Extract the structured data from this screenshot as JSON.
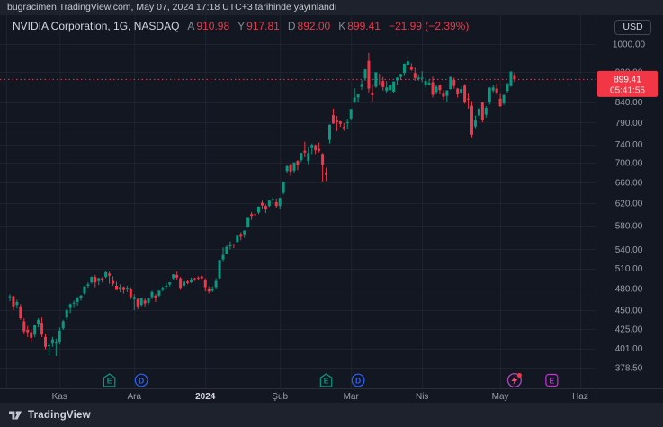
{
  "pubbar": {
    "text": "bugracimen TradingView.com, May 07, 2024 17:18 UTC+3 tarihinde yayınlandı"
  },
  "header": {
    "symbol_title": "NVIDIA Corporation, 1G, NASDAQ",
    "ohlc": {
      "open_label": "A",
      "open": "910.98",
      "high_label": "Y",
      "high": "917.81",
      "low_label": "D",
      "low": "892.00",
      "close_label": "K",
      "close": "899.41",
      "change": "−21.99 (−2.39%)"
    }
  },
  "price_scale": {
    "currency_button": "USD",
    "labels": [
      1000,
      920,
      840,
      790,
      740,
      700,
      660,
      620,
      580,
      540,
      510,
      480,
      450,
      425,
      401,
      378.5
    ],
    "last_price_badge": {
      "price": "899.41",
      "countdown": "05:41:55"
    }
  },
  "time_scale": {
    "ticks": [
      {
        "label": "Kas",
        "i": 14
      },
      {
        "label": "Ara",
        "i": 35
      },
      {
        "label": "2024",
        "i": 55,
        "bold": true
      },
      {
        "label": "Şub",
        "i": 76
      },
      {
        "label": "Mar",
        "i": 96
      },
      {
        "label": "Nis",
        "i": 116
      },
      {
        "label": "May",
        "i": 138
      },
      {
        "label": "Haz",
        "i": 160.5
      }
    ],
    "extra_gridline_i": -1
  },
  "events": [
    {
      "kind": "earnings",
      "label": "E",
      "i": 28,
      "color": "#089981"
    },
    {
      "kind": "dividend",
      "label": "D",
      "i": 37,
      "color": "#2962ff"
    },
    {
      "kind": "earnings",
      "label": "E",
      "i": 89,
      "color": "#089981"
    },
    {
      "kind": "dividend",
      "label": "D",
      "i": 98,
      "color": "#2962ff"
    },
    {
      "kind": "stream",
      "label": "",
      "i": 142,
      "color": "#ab47bc"
    },
    {
      "kind": "upcoming-earnings",
      "label": "E",
      "i": 152.5,
      "color": "#cc2ee0"
    }
  ],
  "footer": {
    "brand": "TradingView"
  },
  "colors": {
    "up": "#089981",
    "down": "#f23645",
    "badge_bg": "#f23645",
    "grid": "rgba(242,245,250,0.055)",
    "border": "#2a2e39",
    "axis_text": "#9b9fa8",
    "axis_text_bold": "#d5d8de",
    "bolt": "#ec4980",
    "alert_dot": "#f23645"
  },
  "chart_data": {
    "type": "candlestick",
    "title": "NVIDIA Corporation, 1G, NASDAQ",
    "symbol": "NVIDIA Corporation",
    "interval": "1G",
    "exchange": "NASDAQ",
    "currency": "USD",
    "yscale": "log",
    "ylim": [
      356,
      1092
    ],
    "grid": true,
    "last_close": 899.41,
    "candles": [
      [
        468,
        472,
        462,
        469
      ],
      [
        469,
        470,
        450,
        455
      ],
      [
        457,
        464,
        452,
        461
      ],
      [
        455,
        458,
        437,
        439
      ],
      [
        435,
        439,
        419,
        422
      ],
      [
        424,
        429,
        415,
        421
      ],
      [
        421,
        424,
        409,
        414
      ],
      [
        418,
        431,
        415,
        430
      ],
      [
        432,
        439,
        427,
        437
      ],
      [
        433,
        440,
        415,
        418
      ],
      [
        415,
        419,
        400,
        403
      ],
      [
        405,
        407,
        393,
        405
      ],
      [
        407,
        415,
        403,
        412
      ],
      [
        408,
        413,
        392,
        408
      ],
      [
        409,
        427,
        406,
        423
      ],
      [
        426,
        437,
        424,
        435
      ],
      [
        440,
        452,
        437,
        450
      ],
      [
        453,
        459,
        446,
        458
      ],
      [
        459,
        463,
        453,
        460
      ],
      [
        461,
        468,
        456,
        466
      ],
      [
        467,
        471,
        463,
        470
      ],
      [
        473,
        484,
        471,
        483
      ],
      [
        484,
        489,
        481,
        486
      ],
      [
        489,
        498,
        487,
        497
      ],
      [
        497,
        500,
        482,
        489
      ],
      [
        491,
        496,
        485,
        495
      ],
      [
        495,
        497,
        489,
        493
      ],
      [
        497,
        506,
        495,
        504
      ],
      [
        502,
        505,
        487,
        499
      ],
      [
        491,
        498,
        484,
        487
      ],
      [
        484,
        490,
        478,
        478
      ],
      [
        480,
        486,
        475,
        482
      ],
      [
        482,
        483,
        473,
        478
      ],
      [
        479,
        484,
        475,
        481
      ],
      [
        479,
        482,
        465,
        468
      ],
      [
        465,
        472,
        450,
        468
      ],
      [
        465,
        466,
        451,
        455
      ],
      [
        457,
        467,
        455,
        466
      ],
      [
        463,
        467,
        455,
        459
      ],
      [
        460,
        466,
        457,
        466
      ],
      [
        468,
        477,
        465,
        475
      ],
      [
        470,
        472,
        461,
        466
      ],
      [
        470,
        477,
        468,
        477
      ],
      [
        478,
        483,
        476,
        481
      ],
      [
        483,
        488,
        480,
        484
      ],
      [
        486,
        489,
        483,
        489
      ],
      [
        495,
        501,
        492,
        501
      ],
      [
        500,
        505,
        493,
        496
      ],
      [
        495,
        497,
        478,
        481
      ],
      [
        484,
        492,
        482,
        490
      ],
      [
        490,
        493,
        486,
        488
      ],
      [
        489,
        496,
        488,
        493
      ],
      [
        495,
        496,
        491,
        494
      ],
      [
        496,
        498,
        493,
        495
      ],
      [
        498,
        499,
        492,
        495
      ],
      [
        492,
        495,
        476,
        482
      ],
      [
        479,
        483,
        473,
        476
      ],
      [
        477,
        483,
        475,
        480
      ],
      [
        482,
        495,
        480,
        491
      ],
      [
        495,
        523,
        494,
        523
      ],
      [
        524,
        543,
        521,
        531
      ],
      [
        533,
        546,
        532,
        544
      ],
      [
        545,
        553,
        540,
        548
      ],
      [
        548,
        549,
        542,
        547
      ],
      [
        552,
        564,
        551,
        564
      ],
      [
        565,
        568,
        555,
        561
      ],
      [
        565,
        572,
        559,
        571
      ],
      [
        577,
        595,
        576,
        595
      ],
      [
        600,
        604,
        590,
        597
      ],
      [
        600,
        603,
        592,
        599
      ],
      [
        603,
        614,
        600,
        614
      ],
      [
        621,
        625,
        610,
        616
      ],
      [
        615,
        618,
        602,
        610
      ],
      [
        615,
        625,
        613,
        625
      ],
      [
        627,
        632,
        619,
        628
      ],
      [
        622,
        629,
        612,
        615
      ],
      [
        615,
        631,
        609,
        630
      ],
      [
        640,
        662,
        637,
        662
      ],
      [
        683,
        695,
        680,
        693
      ],
      [
        697,
        698,
        673,
        682
      ],
      [
        684,
        701,
        680,
        701
      ],
      [
        704,
        706,
        685,
        696
      ],
      [
        706,
        722,
        702,
        721
      ],
      [
        726,
        746,
        712,
        722
      ],
      [
        704,
        734,
        697,
        721
      ],
      [
        732,
        742,
        719,
        739
      ],
      [
        738,
        740,
        719,
        727
      ],
      [
        730,
        744,
        722,
        726
      ],
      [
        719,
        721,
        662,
        695
      ],
      [
        680,
        690,
        663,
        675
      ],
      [
        750,
        786,
        742,
        785
      ],
      [
        808,
        824,
        787,
        788
      ],
      [
        797,
        806,
        770,
        791
      ],
      [
        793,
        794,
        780,
        787
      ],
      [
        780,
        789,
        771,
        777
      ],
      [
        790,
        799,
        775,
        791
      ],
      [
        800,
        823,
        795,
        823
      ],
      [
        841,
        876,
        838,
        852
      ],
      [
        852,
        860,
        840,
        860
      ],
      [
        880,
        897,
        872,
        887
      ],
      [
        902,
        928,
        896,
        927
      ],
      [
        951,
        974,
        865,
        875
      ],
      [
        864,
        887,
        841,
        858
      ],
      [
        880,
        919,
        877,
        919
      ],
      [
        910,
        915,
        884,
        909
      ],
      [
        895,
        906,
        870,
        879
      ],
      [
        869,
        895,
        862,
        878
      ],
      [
        871,
        887,
        860,
        885
      ],
      [
        867,
        894,
        863,
        894
      ],
      [
        897,
        905,
        884,
        904
      ],
      [
        906,
        915,
        898,
        914
      ],
      [
        917,
        943,
        911,
        943
      ],
      [
        940,
        967,
        940,
        950
      ],
      [
        935,
        944,
        923,
        926
      ],
      [
        917,
        932,
        896,
        903
      ],
      [
        900,
        913,
        896,
        904
      ],
      [
        903,
        922,
        892,
        904
      ],
      [
        885,
        901,
        877,
        895
      ],
      [
        885,
        900,
        884,
        890
      ],
      [
        892,
        907,
        852,
        859
      ],
      [
        866,
        885,
        860,
        880
      ],
      [
        886,
        886,
        860,
        871
      ],
      [
        862,
        871,
        846,
        854
      ],
      [
        856,
        871,
        841,
        870
      ],
      [
        874,
        907,
        872,
        906
      ],
      [
        898,
        904,
        875,
        882
      ],
      [
        875,
        877,
        852,
        860
      ],
      [
        864,
        881,
        860,
        874
      ],
      [
        883,
        887,
        836,
        840
      ],
      [
        849,
        862,
        824,
        847
      ],
      [
        831,
        843,
        756,
        762
      ],
      [
        781,
        807,
        777,
        795
      ],
      [
        807,
        828,
        803,
        824
      ],
      [
        839,
        841,
        791,
        797
      ],
      [
        809,
        830,
        802,
        826
      ],
      [
        839,
        879,
        834,
        877
      ],
      [
        870,
        886,
        865,
        878
      ],
      [
        875,
        888,
        859,
        864
      ],
      [
        849,
        861,
        828,
        830
      ],
      [
        837,
        860,
        833,
        858
      ],
      [
        869,
        890,
        864,
        888
      ],
      [
        882,
        922,
        880,
        921
      ],
      [
        910.98,
        917.81,
        892,
        899.41
      ]
    ]
  }
}
